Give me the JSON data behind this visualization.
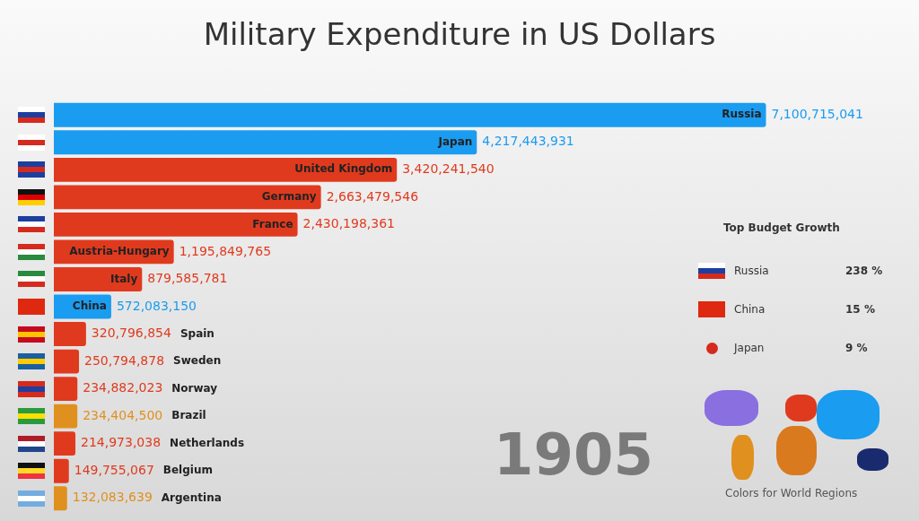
{
  "chart_data": {
    "type": "bar",
    "orientation": "horizontal",
    "title": "Military Expenditure in US Dollars",
    "categories": [
      "Russia",
      "Japan",
      "United Kingdom",
      "Germany",
      "France",
      "Austria-Hungary",
      "Italy",
      "China",
      "Spain",
      "Sweden",
      "Norway",
      "Brazil",
      "Netherlands",
      "Belgium",
      "Argentina"
    ],
    "values": [
      7100715041,
      4217443931,
      3420241540,
      2663479546,
      2430198361,
      1195849765,
      879585781,
      572083150,
      320796854,
      250794878,
      234882023,
      234404500,
      214973038,
      149755067,
      132083639
    ],
    "colors": [
      "#1a9cf0",
      "#1a9cf0",
      "#e03a1e",
      "#e03a1e",
      "#e03a1e",
      "#e03a1e",
      "#e03a1e",
      "#1a9cf0",
      "#e03a1e",
      "#e03a1e",
      "#e03a1e",
      "#e0901e",
      "#e03a1e",
      "#e03a1e",
      "#e0901e"
    ],
    "value_labels": [
      "7,100,715,041",
      "4,217,443,931",
      "3,420,241,540",
      "2,663,479,546",
      "2,430,198,361",
      "1,195,849,765",
      "879,585,781",
      "572,083,150",
      "320,796,854",
      "250,794,878",
      "234,882,023",
      "234,404,500",
      "214,973,038",
      "149,755,067",
      "132,083,639"
    ],
    "tick_labels": false,
    "legend": false,
    "annotations": [
      "1905",
      "Top Budget Growth",
      "Russia",
      "238 %",
      "China",
      "15 %",
      "Japan",
      "9 %",
      "Colors for World Regions"
    ]
  }
}
